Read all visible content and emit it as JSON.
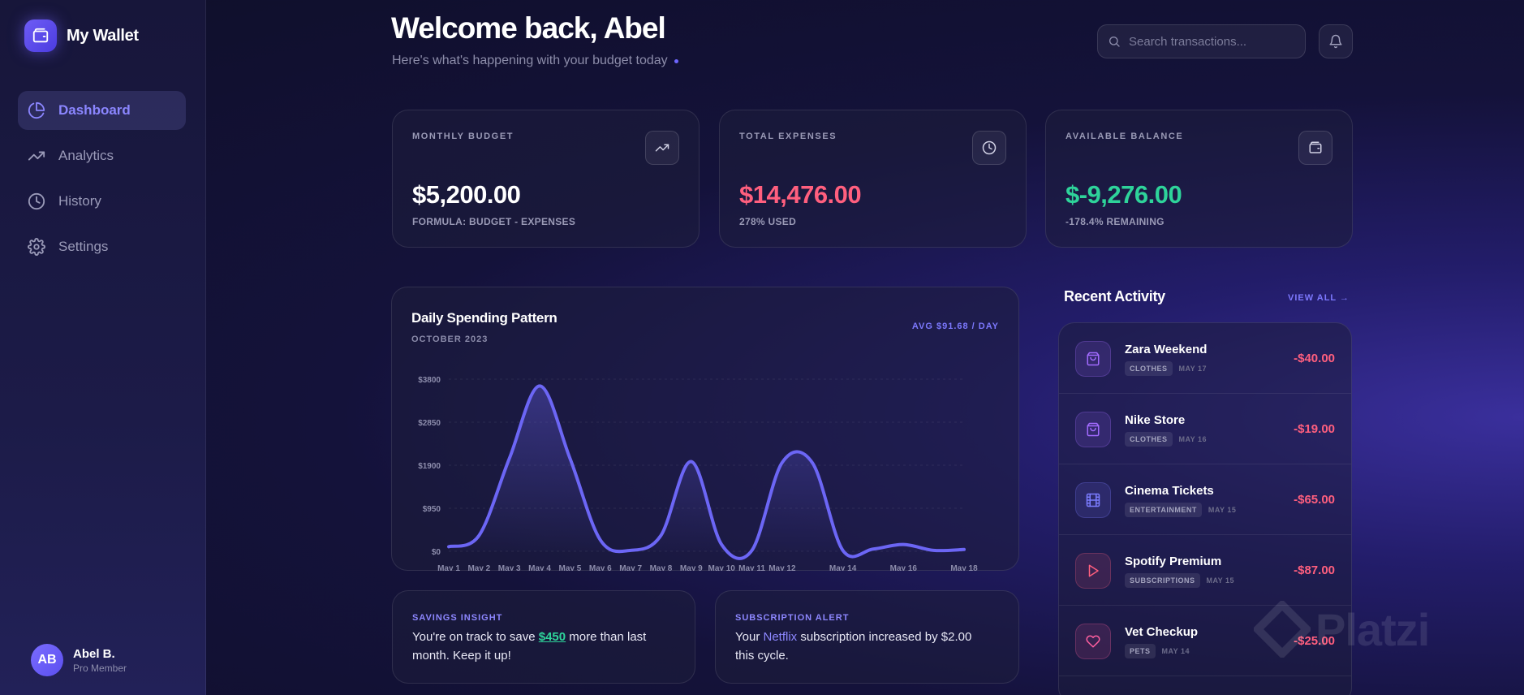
{
  "app": {
    "name": "My Wallet"
  },
  "sidebar": {
    "items": [
      {
        "label": "Dashboard",
        "icon": "pie-chart-icon",
        "active": true
      },
      {
        "label": "Analytics",
        "icon": "trending-up-icon",
        "active": false
      },
      {
        "label": "History",
        "icon": "clock-icon",
        "active": false
      },
      {
        "label": "Settings",
        "icon": "gear-icon",
        "active": false
      }
    ],
    "user": {
      "initials": "AB",
      "name": "Abel B.",
      "role": "Pro Member"
    }
  },
  "header": {
    "title": "Welcome back, Abel",
    "subtitle": "Here's what's happening with your budget today",
    "search_placeholder": "Search transactions..."
  },
  "stats": [
    {
      "label": "MONTHLY BUDGET",
      "value": "$5,200.00",
      "sub": "FORMULA: BUDGET - EXPENSES",
      "value_color": "#ffffff",
      "icon": "trending-up-icon"
    },
    {
      "label": "TOTAL EXPENSES",
      "value": "$14,476.00",
      "sub": "278% USED",
      "value_color": "#ff5f7e",
      "icon": "clock-icon"
    },
    {
      "label": "AVAILABLE BALANCE",
      "value": "$-9,276.00",
      "sub": "-178.4% REMAINING",
      "value_color": "#2ed39a",
      "icon": "wallet-icon"
    }
  ],
  "chart": {
    "title": "Daily Spending Pattern",
    "subtitle": "OCTOBER 2023",
    "avg": "AVG $91.68 / DAY"
  },
  "chart_data": {
    "type": "area",
    "title": "Daily Spending Pattern",
    "ylim": [
      0,
      3800
    ],
    "y_ticks": [
      0,
      950,
      1900,
      2850,
      3800
    ],
    "y_tick_labels": [
      "$0",
      "$950",
      "$1900",
      "$2850",
      "$3800"
    ],
    "x_tick_labels": [
      "May 1",
      "May 2",
      "May 3",
      "May 4",
      "May 5",
      "May 6",
      "May 7",
      "May 8",
      "May 9",
      "May 10",
      "May 11",
      "May 12",
      "May 14",
      "May 16",
      "May 18"
    ],
    "x": [
      1,
      2,
      3,
      4,
      5,
      6,
      7,
      8,
      9,
      10,
      11,
      12,
      13,
      14,
      15,
      16,
      17,
      18
    ],
    "values": [
      100,
      350,
      2050,
      3650,
      2050,
      250,
      20,
      350,
      1980,
      150,
      20,
      1960,
      1950,
      20,
      50,
      150,
      20,
      40
    ],
    "grid": true,
    "color": "#6c66f5"
  },
  "insights": [
    {
      "label": "SAVINGS INSIGHT",
      "text_before": "You're on track to save ",
      "highlight": "$450",
      "text_after": " more than last month. Keep it up!"
    },
    {
      "label": "SUBSCRIPTION ALERT",
      "text_before": "Your ",
      "highlight": "Netflix",
      "text_after": " subscription increased by $2.00 this cycle."
    }
  ],
  "recent": {
    "title": "Recent Activity",
    "view_all": "VIEW ALL",
    "items": [
      {
        "name": "Zara Weekend",
        "tag": "CLOTHES",
        "date": "MAY 17",
        "amount": "-$40.00",
        "icon": "shopping-bag-icon",
        "color": "#a26bff"
      },
      {
        "name": "Nike Store",
        "tag": "CLOTHES",
        "date": "MAY 16",
        "amount": "-$19.00",
        "icon": "shopping-bag-icon",
        "color": "#a26bff"
      },
      {
        "name": "Cinema Tickets",
        "tag": "ENTERTAINMENT",
        "date": "MAY 15",
        "amount": "-$65.00",
        "icon": "film-icon",
        "color": "#7b7cff"
      },
      {
        "name": "Spotify Premium",
        "tag": "SUBSCRIPTIONS",
        "date": "MAY 15",
        "amount": "-$87.00",
        "icon": "play-icon",
        "color": "#ff5f7e"
      },
      {
        "name": "Vet Checkup",
        "tag": "PETS",
        "date": "MAY 14",
        "amount": "-$25.00",
        "icon": "heart-icon",
        "color": "#ff5fa0"
      }
    ]
  },
  "watermark": "Platzi"
}
